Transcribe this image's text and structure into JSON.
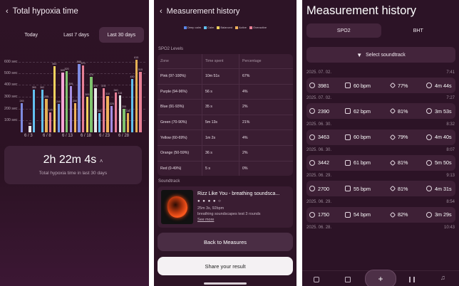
{
  "hypoxia": {
    "title": "Total hypoxia time",
    "tabs": [
      "Today",
      "Last 7 days",
      "Last 30 days"
    ],
    "selected_tab": "Last 30 days",
    "y_ticks": [
      "600 sec",
      "500 sec",
      "400 sec",
      "300 sec",
      "200 sec",
      "100 sec"
    ],
    "x_ticks": [
      "6 / 3",
      "6 / 8",
      "6 / 13",
      "6 / 18",
      "6 / 23",
      "6 / 28"
    ],
    "total": "2h 22m 4s",
    "total_label": "Total hypoxia time in last 30 days"
  },
  "chart_data": {
    "type": "bar",
    "title": "Total hypoxia time",
    "ylabel": "",
    "ylim": [
      0,
      640
    ],
    "x_ticks": [
      "6 / 3",
      "6 / 8",
      "6 / 13",
      "6 / 18",
      "6 / 23",
      "6 / 28"
    ],
    "bars": [
      {
        "x": 1,
        "value": 245,
        "color": "#7e8be0"
      },
      {
        "x": 3,
        "value": 55,
        "color": "#e9e9ea"
      },
      {
        "x": 4,
        "value": 365,
        "color": "#62c1f0"
      },
      {
        "x": 6,
        "value": 362,
        "color": "#62c1f0"
      },
      {
        "x": 7,
        "value": 285,
        "color": "#e5b054"
      },
      {
        "x": 8,
        "value": 170,
        "color": "#e77f96"
      },
      {
        "x": 9,
        "value": 560,
        "color": "#f4d35e"
      },
      {
        "x": 10,
        "value": 240,
        "color": "#6e9ae6"
      },
      {
        "x": 11,
        "value": 505,
        "color": "#f6a6d6"
      },
      {
        "x": 12,
        "value": 520,
        "color": "#7fc46f"
      },
      {
        "x": 13,
        "value": 395,
        "color": "#a58ee2"
      },
      {
        "x": 14,
        "value": 250,
        "color": "#f0b25a"
      },
      {
        "x": 15,
        "value": 580,
        "color": "#7e8be0"
      },
      {
        "x": 16,
        "value": 570,
        "color": "#e77f96"
      },
      {
        "x": 17,
        "value": 300,
        "color": "#f4d35e"
      },
      {
        "x": 18,
        "value": 470,
        "color": "#7fc46f"
      },
      {
        "x": 19,
        "value": 375,
        "color": "#e9e9ea"
      },
      {
        "x": 20,
        "value": 165,
        "color": "#62c1f0"
      },
      {
        "x": 21,
        "value": 375,
        "color": "#e77f96"
      },
      {
        "x": 22,
        "value": 310,
        "color": "#f0b25a"
      },
      {
        "x": 23,
        "value": 225,
        "color": "#a58ee2"
      },
      {
        "x": 24,
        "value": 340,
        "color": "#e77f96"
      },
      {
        "x": 25,
        "value": 315,
        "color": "#e9e9ea"
      },
      {
        "x": 26,
        "value": 200,
        "color": "#7fc46f"
      },
      {
        "x": 27,
        "value": 165,
        "color": "#e5b054"
      },
      {
        "x": 28,
        "value": 450,
        "color": "#62c1f0"
      },
      {
        "x": 29,
        "value": 615,
        "color": "#e5b054"
      },
      {
        "x": 30,
        "value": 515,
        "color": "#e77f96"
      }
    ]
  },
  "detail": {
    "title": "Measurement history",
    "legend": [
      {
        "label": "Deep calm",
        "color": "#5a86e8"
      },
      {
        "label": "Calm",
        "color": "#62c1f0"
      },
      {
        "label": "Balanced",
        "color": "#f4d35e"
      },
      {
        "label": "Active",
        "color": "#f0b25a"
      },
      {
        "label": "Overactive",
        "color": "#e77f96"
      }
    ],
    "spo2_title": "SPO2 Levels",
    "table_header": [
      "Zone",
      "Time spent",
      "Percentage"
    ],
    "rows": [
      [
        "Pink (97-100%)",
        "10m 51s",
        "67%"
      ],
      [
        "Purple (94-96%)",
        "56 s",
        "4%"
      ],
      [
        "Blue (91-93%)",
        "35 s",
        "2%"
      ],
      [
        "Green (70-90%)",
        "5m 13s",
        "21%"
      ],
      [
        "Yellow (60-69%)",
        "1m 2s",
        "4%"
      ],
      [
        "Orange (50-59%)",
        "36 s",
        "2%"
      ],
      [
        "Red (0-49%)",
        "5 s",
        "0%"
      ]
    ],
    "soundtrack_title": "Soundtrack",
    "track_name": "Rizz Like You - breathing soundsca...",
    "track_rating": "● ● ● ● ○",
    "track_meta1": "25m 3s, 92bpm",
    "track_meta2": "breathing soundscapes test 3 rounds",
    "see_more": "See more",
    "back_button": "Back to Measures",
    "share_button": "Share your result"
  },
  "history": {
    "title": "Measurement history",
    "tabs": [
      "SPO2",
      "BHT"
    ],
    "selected_tab": "SPO2",
    "select_soundtrack": "Select soundtrack",
    "records": [
      {
        "date": "2025. 07. 02.",
        "time": "7:41",
        "steps": "3981",
        "bpm": "60 bpm",
        "pct": "77%",
        "dur": "4m 44s"
      },
      {
        "date": "2025. 07. 02.",
        "time": "7:27",
        "steps": "2390",
        "bpm": "62 bpm",
        "pct": "81%",
        "dur": "3m 53s"
      },
      {
        "date": "2025. 06. 30.",
        "time": "8:32",
        "steps": "3463",
        "bpm": "60 bpm",
        "pct": "79%",
        "dur": "4m 40s"
      },
      {
        "date": "2025. 06. 30.",
        "time": "8:07",
        "steps": "3442",
        "bpm": "61 bpm",
        "pct": "81%",
        "dur": "5m 50s"
      },
      {
        "date": "2025. 06. 29.",
        "time": "9:13",
        "steps": "2700",
        "bpm": "55 bpm",
        "pct": "81%",
        "dur": "4m 31s"
      },
      {
        "date": "2025. 06. 29.",
        "time": "8:54",
        "steps": "1750",
        "bpm": "54 bpm",
        "pct": "82%",
        "dur": "3m 29s"
      },
      {
        "date": "2025. 06. 28.",
        "time": "10:43"
      }
    ]
  }
}
